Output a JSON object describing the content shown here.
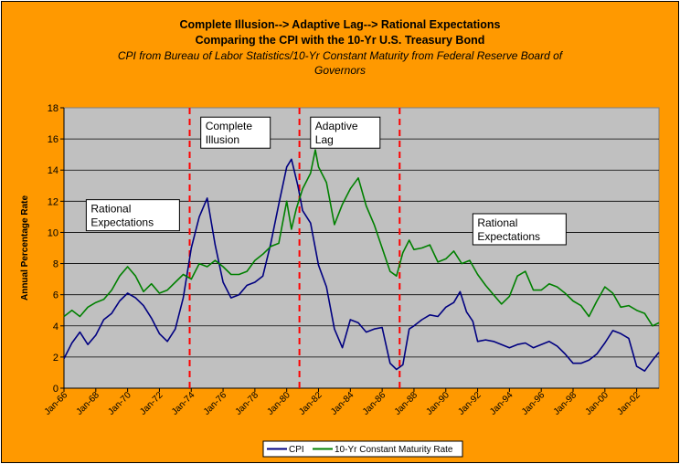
{
  "chart_data": {
    "type": "line",
    "title": "Complete Illusion--> Adaptive Lag--> Rational Expectations",
    "title_line2": "Comparing the CPI with the 10-Yr U.S. Treasury Bond",
    "subtitle": "CPI from Bureau of Labor Statistics/10-Yr Constant Maturity from Federal Reserve Board of",
    "subtitle_line2": "Governors",
    "ylabel": "Annual Percentage Rate",
    "xlabel": "",
    "ylim": [
      0,
      18
    ],
    "yticks": [
      0,
      2,
      4,
      6,
      8,
      10,
      12,
      14,
      16,
      18
    ],
    "xlim": [
      1966,
      2003.4
    ],
    "xticks": [
      {
        "x": 1966,
        "label": "Jan-66"
      },
      {
        "x": 1968,
        "label": "Jan-68"
      },
      {
        "x": 1970,
        "label": "Jan-70"
      },
      {
        "x": 1972,
        "label": "Jan-72"
      },
      {
        "x": 1974,
        "label": "Jan-74"
      },
      {
        "x": 1976,
        "label": "Jan-76"
      },
      {
        "x": 1978,
        "label": "Jan-78"
      },
      {
        "x": 1980,
        "label": "Jan-80"
      },
      {
        "x": 1982,
        "label": "Jan-82"
      },
      {
        "x": 1984,
        "label": "Jan-84"
      },
      {
        "x": 1986,
        "label": "Jan-86"
      },
      {
        "x": 1988,
        "label": "Jan-88"
      },
      {
        "x": 1990,
        "label": "Jan-90"
      },
      {
        "x": 1992,
        "label": "Jan-92"
      },
      {
        "x": 1994,
        "label": "Jan-94"
      },
      {
        "x": 1996,
        "label": "Jan-96"
      },
      {
        "x": 1998,
        "label": "Jan-98"
      },
      {
        "x": 2000,
        "label": "Jan-00"
      },
      {
        "x": 2002,
        "label": "Jan-02"
      }
    ],
    "grid": true,
    "plot_background": "#C0C0C0",
    "frame_background": "#FF9900",
    "series": [
      {
        "name": "CPI",
        "color": "#000080",
        "x": [
          1966.0,
          1966.5,
          1967.0,
          1967.5,
          1968.0,
          1968.5,
          1969.0,
          1969.5,
          1970.0,
          1970.5,
          1971.0,
          1971.5,
          1972.0,
          1972.5,
          1973.0,
          1973.5,
          1974.0,
          1974.5,
          1975.0,
          1975.5,
          1976.0,
          1976.5,
          1977.0,
          1977.5,
          1978.0,
          1978.5,
          1979.0,
          1979.5,
          1980.0,
          1980.3,
          1980.7,
          1981.0,
          1981.5,
          1982.0,
          1982.5,
          1983.0,
          1983.5,
          1984.0,
          1984.5,
          1985.0,
          1985.5,
          1986.0,
          1986.5,
          1986.9,
          1987.3,
          1987.7,
          1988.0,
          1988.5,
          1989.0,
          1989.5,
          1990.0,
          1990.5,
          1990.9,
          1991.3,
          1991.7,
          1992.0,
          1992.5,
          1993.0,
          1993.5,
          1994.0,
          1994.5,
          1995.0,
          1995.5,
          1996.0,
          1996.5,
          1997.0,
          1997.5,
          1998.0,
          1998.5,
          1999.0,
          1999.5,
          2000.0,
          2000.5,
          2001.0,
          2001.5,
          2002.0,
          2002.5,
          2003.0,
          2003.4
        ],
        "values": [
          1.9,
          2.9,
          3.6,
          2.8,
          3.4,
          4.4,
          4.8,
          5.6,
          6.1,
          5.8,
          5.3,
          4.5,
          3.5,
          3.0,
          3.8,
          5.8,
          9.0,
          11.0,
          12.2,
          9.2,
          6.8,
          5.8,
          6.0,
          6.6,
          6.8,
          7.2,
          9.3,
          11.8,
          14.2,
          14.7,
          13.0,
          11.4,
          10.6,
          7.9,
          6.5,
          3.8,
          2.6,
          4.4,
          4.2,
          3.6,
          3.8,
          3.9,
          1.6,
          1.2,
          1.5,
          3.8,
          4.0,
          4.4,
          4.7,
          4.6,
          5.2,
          5.5,
          6.2,
          4.9,
          4.3,
          3.0,
          3.1,
          3.0,
          2.8,
          2.6,
          2.8,
          2.9,
          2.6,
          2.8,
          3.0,
          2.7,
          2.2,
          1.6,
          1.6,
          1.8,
          2.2,
          2.9,
          3.7,
          3.5,
          3.2,
          1.4,
          1.1,
          1.8,
          2.3
        ]
      },
      {
        "name": "10-Yr Constant Maturity Rate",
        "color": "#008000",
        "x": [
          1966.0,
          1966.5,
          1967.0,
          1967.5,
          1968.0,
          1968.5,
          1969.0,
          1969.5,
          1970.0,
          1970.5,
          1971.0,
          1971.5,
          1972.0,
          1972.5,
          1973.0,
          1973.5,
          1974.0,
          1974.5,
          1975.0,
          1975.5,
          1976.0,
          1976.5,
          1977.0,
          1977.5,
          1978.0,
          1978.5,
          1979.0,
          1979.5,
          1980.0,
          1980.3,
          1980.6,
          1981.0,
          1981.5,
          1981.8,
          1982.0,
          1982.5,
          1983.0,
          1983.5,
          1984.0,
          1984.5,
          1985.0,
          1985.5,
          1986.0,
          1986.5,
          1986.9,
          1987.3,
          1987.7,
          1988.0,
          1988.5,
          1989.0,
          1989.5,
          1990.0,
          1990.5,
          1991.0,
          1991.5,
          1992.0,
          1992.5,
          1993.0,
          1993.5,
          1994.0,
          1994.5,
          1995.0,
          1995.5,
          1996.0,
          1996.5,
          1997.0,
          1997.5,
          1998.0,
          1998.5,
          1999.0,
          1999.5,
          2000.0,
          2000.5,
          2001.0,
          2001.5,
          2002.0,
          2002.5,
          2003.0,
          2003.4
        ],
        "values": [
          4.6,
          5.0,
          4.6,
          5.2,
          5.5,
          5.7,
          6.3,
          7.2,
          7.8,
          7.2,
          6.2,
          6.7,
          6.1,
          6.3,
          6.8,
          7.3,
          7.0,
          8.0,
          7.8,
          8.2,
          7.8,
          7.3,
          7.3,
          7.5,
          8.2,
          8.6,
          9.1,
          9.3,
          12.0,
          10.2,
          11.5,
          12.8,
          13.8,
          15.3,
          14.2,
          13.2,
          10.5,
          11.8,
          12.8,
          13.5,
          11.7,
          10.5,
          9.0,
          7.5,
          7.2,
          8.7,
          9.5,
          8.9,
          9.0,
          9.2,
          8.1,
          8.3,
          8.8,
          8.0,
          8.2,
          7.3,
          6.6,
          6.0,
          5.4,
          5.9,
          7.2,
          7.5,
          6.3,
          6.3,
          6.7,
          6.5,
          6.1,
          5.6,
          5.3,
          4.6,
          5.6,
          6.5,
          6.1,
          5.2,
          5.3,
          5.0,
          4.8,
          4.0,
          4.2
        ]
      }
    ],
    "annotations": [
      {
        "label": "Complete Illusion",
        "x_from": 1974.0,
        "x_to": 1980.8,
        "x_mid": 1977.2
      },
      {
        "label": "Adaptive Lag",
        "x_from": 1980.8,
        "x_to": 1987.1,
        "x_mid": 1983.8
      }
    ],
    "regime_dividers": [
      1973.9,
      1980.8,
      1987.1
    ],
    "text_boxes": [
      {
        "id": "rational1",
        "line1": "Rational",
        "line2": "Expectations",
        "x": 1967.4,
        "y": 12.1
      },
      {
        "id": "complete",
        "line1": "Complete",
        "line2": "Illusion",
        "x": 1974.6,
        "y": 17.4
      },
      {
        "id": "adaptive",
        "line1": "Adaptive",
        "line2": "Lag",
        "x": 1981.5,
        "y": 17.4
      },
      {
        "id": "rational2",
        "line1": "Rational",
        "line2": "Expectations",
        "x": 1991.7,
        "y": 11.2
      }
    ],
    "legend": {
      "position": "bottom",
      "items": [
        "CPI",
        "10-Yr Constant Maturity Rate"
      ]
    }
  }
}
